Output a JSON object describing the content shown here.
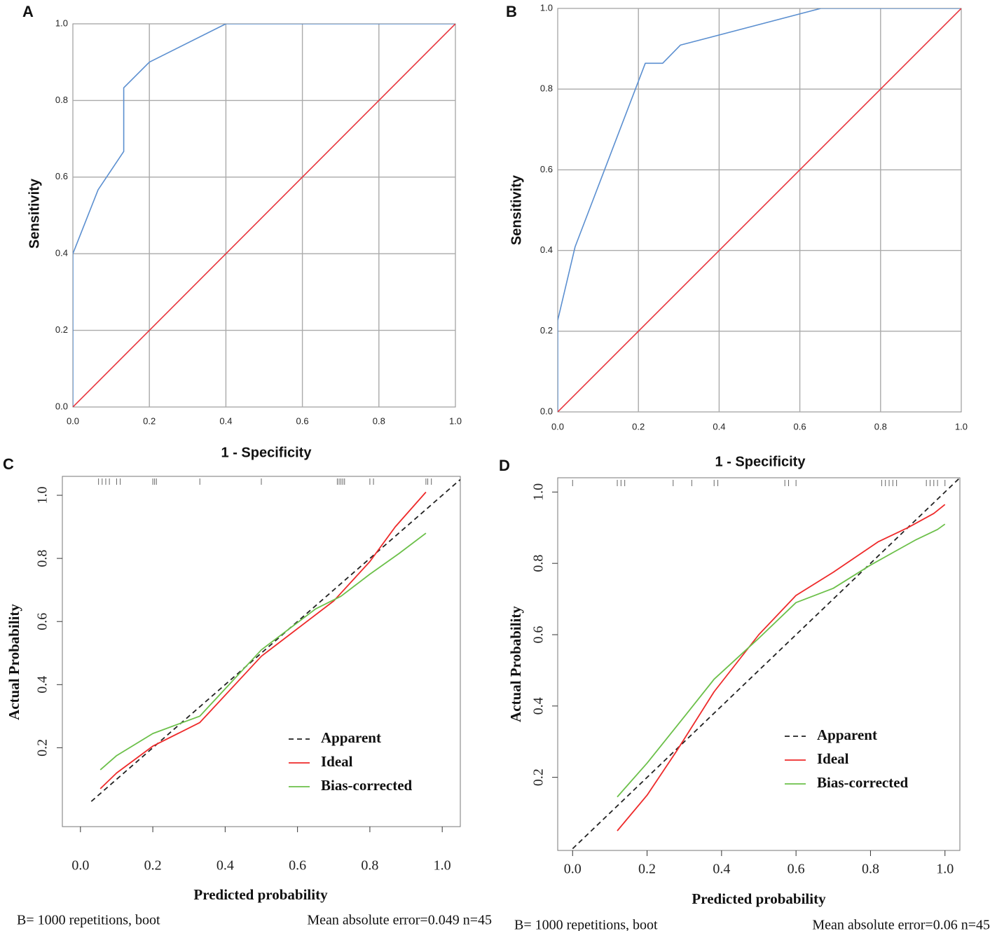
{
  "colors": {
    "roc_curve": "#5b8fd0",
    "reference": "#e8343c",
    "grid": "#aaaaaa",
    "apparent": "#222222",
    "ideal": "#ee2a2a",
    "bias_corrected": "#6cc04a",
    "rug": "#666666"
  },
  "chart_data": [
    {
      "panel": "A",
      "type": "line",
      "title": "",
      "xlabel": "1 - Specificity",
      "ylabel": "Sensitivity",
      "xlim": [
        0,
        1
      ],
      "ylim": [
        0,
        1
      ],
      "grid": true,
      "xticks": [
        "0.0",
        "0.2",
        "0.4",
        "0.6",
        "0.8",
        "1.0"
      ],
      "yticks": [
        "0.0",
        "0.2",
        "0.4",
        "0.6",
        "0.8",
        "1.0"
      ],
      "series": [
        {
          "name": "ROC curve",
          "x": [
            0,
            0,
            0.066,
            0.133,
            0.133,
            0.2,
            0.4,
            1.0
          ],
          "y": [
            0,
            0.4,
            0.567,
            0.667,
            0.833,
            0.9,
            1.0,
            1.0
          ]
        },
        {
          "name": "Reference line",
          "x": [
            0,
            1
          ],
          "y": [
            0,
            1
          ]
        }
      ]
    },
    {
      "panel": "B",
      "type": "line",
      "title": "",
      "xlabel": "1 - Specificity",
      "ylabel": "Sensitivity",
      "xlim": [
        0,
        1
      ],
      "ylim": [
        0,
        1
      ],
      "grid": true,
      "xticks": [
        "0.0",
        "0.2",
        "0.4",
        "0.6",
        "0.8",
        "1.0"
      ],
      "yticks": [
        "0.0",
        "0.2",
        "0.4",
        "0.6",
        "0.8",
        "1.0"
      ],
      "series": [
        {
          "name": "ROC curve",
          "x": [
            0,
            0,
            0.043,
            0.217,
            0.26,
            0.304,
            0.652,
            1.0
          ],
          "y": [
            0,
            0.227,
            0.409,
            0.864,
            0.864,
            0.909,
            1.0,
            1.0
          ]
        },
        {
          "name": "Reference line",
          "x": [
            0,
            1
          ],
          "y": [
            0,
            1
          ]
        }
      ]
    },
    {
      "panel": "C",
      "type": "line",
      "title": "",
      "xlabel": "Predicted probability",
      "ylabel": "Actual Probability",
      "xlim": [
        -0.05,
        1.05
      ],
      "ylim": [
        -0.05,
        1.06
      ],
      "grid": false,
      "xticks": [
        "0.0",
        "0.2",
        "0.4",
        "0.6",
        "0.8",
        "1.0"
      ],
      "yticks": [
        "0.2",
        "0.4",
        "0.6",
        "0.8",
        "1.0"
      ],
      "legend": [
        "Apparent",
        "Ideal",
        "Bias-corrected"
      ],
      "legend_position": "bottom-right",
      "series": [
        {
          "name": "Apparent",
          "x": [
            0.03,
            1.05
          ],
          "y": [
            0.03,
            1.05
          ]
        },
        {
          "name": "Ideal",
          "x": [
            0.055,
            0.1,
            0.2,
            0.33,
            0.5,
            0.7,
            0.72,
            0.8,
            0.87,
            0.955
          ],
          "y": [
            0.07,
            0.12,
            0.205,
            0.28,
            0.49,
            0.665,
            0.69,
            0.79,
            0.9,
            1.01
          ]
        },
        {
          "name": "Bias-corrected",
          "x": [
            0.055,
            0.1,
            0.2,
            0.33,
            0.5,
            0.65,
            0.72,
            0.8,
            0.88,
            0.955
          ],
          "y": [
            0.13,
            0.175,
            0.245,
            0.3,
            0.51,
            0.64,
            0.68,
            0.75,
            0.815,
            0.88
          ]
        }
      ],
      "rug_x": [
        0.05,
        0.06,
        0.07,
        0.08,
        0.1,
        0.11,
        0.2,
        0.205,
        0.21,
        0.33,
        0.5,
        0.71,
        0.715,
        0.72,
        0.725,
        0.73,
        0.8,
        0.81,
        0.955,
        0.96,
        0.97
      ],
      "footnote_left": "B= 1000 repetitions, boot",
      "footnote_right": "Mean absolute error=0.049 n=45"
    },
    {
      "panel": "D",
      "type": "line",
      "title": "",
      "xlabel": "Predicted probability",
      "ylabel": "Actual Probability",
      "xlim": [
        -0.04,
        1.04
      ],
      "ylim": [
        -0.005,
        1.04
      ],
      "grid": false,
      "xticks": [
        "0.0",
        "0.2",
        "0.4",
        "0.6",
        "0.8",
        "1.0"
      ],
      "yticks": [
        "0.2",
        "0.4",
        "0.6",
        "0.8",
        "1.0"
      ],
      "legend": [
        "Apparent",
        "Ideal",
        "Bias-corrected"
      ],
      "legend_position": "bottom-right",
      "series": [
        {
          "name": "Apparent",
          "x": [
            0.0,
            1.04
          ],
          "y": [
            0.0,
            1.04
          ]
        },
        {
          "name": "Ideal",
          "x": [
            0.12,
            0.2,
            0.28,
            0.38,
            0.5,
            0.6,
            0.7,
            0.82,
            0.9,
            0.97,
            1.0
          ],
          "y": [
            0.05,
            0.15,
            0.275,
            0.44,
            0.6,
            0.71,
            0.775,
            0.86,
            0.9,
            0.94,
            0.965
          ]
        },
        {
          "name": "Bias-corrected",
          "x": [
            0.12,
            0.2,
            0.3,
            0.38,
            0.5,
            0.6,
            0.7,
            0.8,
            0.86,
            0.92,
            0.98,
            1.0
          ],
          "y": [
            0.145,
            0.24,
            0.37,
            0.475,
            0.59,
            0.69,
            0.73,
            0.795,
            0.83,
            0.865,
            0.895,
            0.91
          ]
        }
      ],
      "rug_x": [
        0.0,
        0.12,
        0.13,
        0.14,
        0.27,
        0.32,
        0.38,
        0.39,
        0.57,
        0.58,
        0.6,
        0.83,
        0.84,
        0.85,
        0.86,
        0.87,
        0.95,
        0.96,
        0.97,
        0.98,
        1.0
      ],
      "footnote_left": "B= 1000 repetitions, boot",
      "footnote_right": "Mean absolute error=0.06 n=45"
    }
  ],
  "panel_labels": [
    "A",
    "B",
    "C",
    "D"
  ]
}
